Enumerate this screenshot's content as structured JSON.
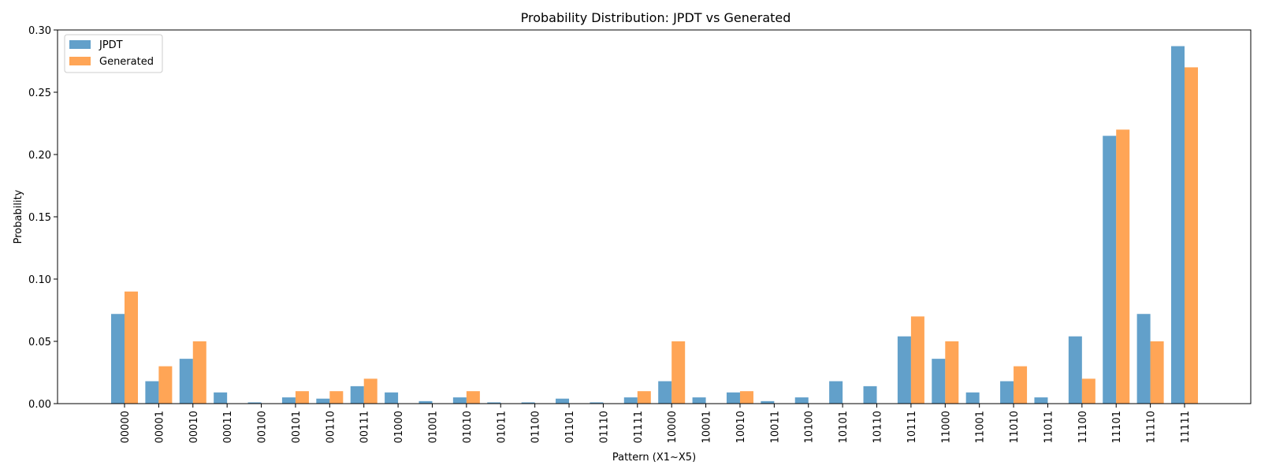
{
  "chart_data": {
    "type": "bar",
    "title": "Probability Distribution: JPDT vs Generated",
    "xlabel": "Pattern (X1~X5)",
    "ylabel": "Probability",
    "ylim": [
      0,
      0.3
    ],
    "yticks": [
      "0.00",
      "0.05",
      "0.10",
      "0.15",
      "0.20",
      "0.25",
      "0.30"
    ],
    "legend_position": "top-left",
    "grid": false,
    "categories": [
      "00000",
      "00001",
      "00010",
      "00011",
      "00100",
      "00101",
      "00110",
      "00111",
      "01000",
      "01001",
      "01010",
      "01011",
      "01100",
      "01101",
      "01110",
      "01111",
      "10000",
      "10001",
      "10010",
      "10011",
      "10100",
      "10101",
      "10110",
      "10111",
      "11000",
      "11001",
      "11010",
      "11011",
      "11100",
      "11101",
      "11110",
      "11111"
    ],
    "series": [
      {
        "name": "JPDT",
        "color": "#1f77b4",
        "values": [
          0.072,
          0.018,
          0.036,
          0.009,
          0.001,
          0.005,
          0.004,
          0.014,
          0.009,
          0.002,
          0.005,
          0.001,
          0.001,
          0.004,
          0.001,
          0.005,
          0.018,
          0.005,
          0.009,
          0.002,
          0.005,
          0.018,
          0.014,
          0.054,
          0.036,
          0.009,
          0.018,
          0.005,
          0.054,
          0.215,
          0.072,
          0.287
        ]
      },
      {
        "name": "Generated",
        "color": "#ff7f0e",
        "values": [
          0.09,
          0.03,
          0.05,
          0.0,
          0.0,
          0.01,
          0.01,
          0.02,
          0.0,
          0.0,
          0.01,
          0.0,
          0.0,
          0.0,
          0.0,
          0.01,
          0.05,
          0.0,
          0.01,
          0.0,
          0.0,
          0.0,
          0.0,
          0.07,
          0.05,
          0.0,
          0.03,
          0.0,
          0.02,
          0.22,
          0.05,
          0.27
        ]
      }
    ]
  }
}
